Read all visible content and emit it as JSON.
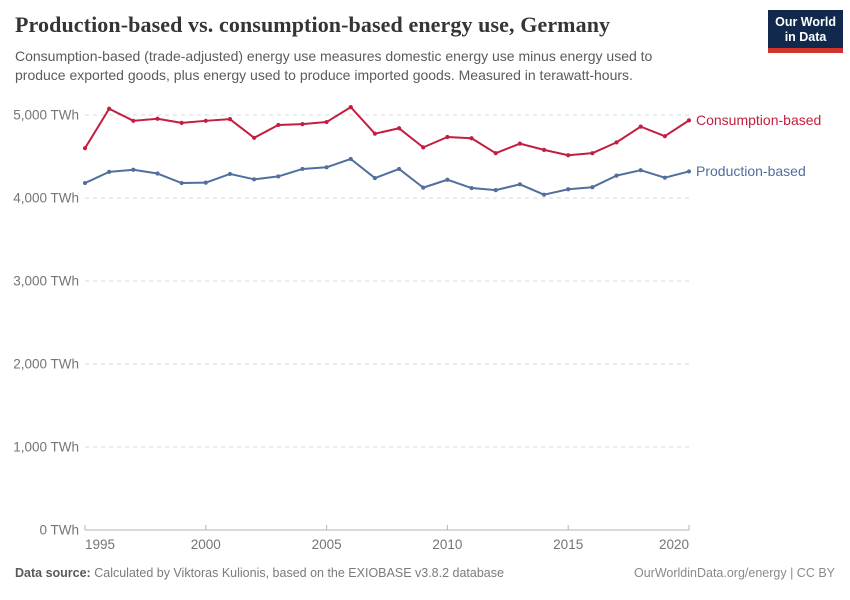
{
  "header": {
    "title": "Production-based vs. consumption-based energy use, Germany",
    "subtitle": "Consumption-based (trade-adjusted) energy use measures domestic energy use minus energy used to produce exported goods, plus energy used to produce imported goods. Measured in terawatt-hours."
  },
  "logo": {
    "line1": "Our World",
    "line2": "in Data",
    "bg_color": "#10294c",
    "accent_color": "#d0332a"
  },
  "chart_data": {
    "type": "line",
    "title": "Production-based vs. consumption-based energy use, Germany",
    "unit": "TWh",
    "xlabel": "",
    "ylabel": "",
    "grid": "horizontal-dashed",
    "legend_position": "right-of-line-ends",
    "xlim": [
      1995,
      2020
    ],
    "ylim": [
      0,
      5200
    ],
    "x": [
      1995,
      1996,
      1997,
      1998,
      1999,
      2000,
      2001,
      2002,
      2003,
      2004,
      2005,
      2006,
      2007,
      2008,
      2009,
      2010,
      2011,
      2012,
      2013,
      2014,
      2015,
      2016,
      2017,
      2018,
      2019,
      2020
    ],
    "series": [
      {
        "name": "Consumption-based",
        "color": "#c21e3f",
        "values": [
          4600,
          5075,
          4930,
          4955,
          4905,
          4930,
          4950,
          4725,
          4880,
          4890,
          4915,
          5095,
          4775,
          4840,
          4610,
          4735,
          4720,
          4540,
          4655,
          4580,
          4515,
          4540,
          4670,
          4860,
          4745,
          4935
        ]
      },
      {
        "name": "Production-based",
        "color": "#506e9e",
        "values": [
          4180,
          4315,
          4340,
          4295,
          4180,
          4185,
          4290,
          4225,
          4260,
          4350,
          4370,
          4470,
          4240,
          4350,
          4125,
          4220,
          4120,
          4095,
          4165,
          4040,
          4105,
          4130,
          4270,
          4335,
          4245,
          4320
        ]
      }
    ],
    "y_ticks": [
      {
        "value": 0,
        "label": "0 TWh"
      },
      {
        "value": 1000,
        "label": "1,000 TWh"
      },
      {
        "value": 2000,
        "label": "2,000 TWh"
      },
      {
        "value": 3000,
        "label": "3,000 TWh"
      },
      {
        "value": 4000,
        "label": "4,000 TWh"
      },
      {
        "value": 5000,
        "label": "5,000 TWh"
      }
    ],
    "x_ticks": [
      {
        "value": 1995,
        "label": "1995"
      },
      {
        "value": 2000,
        "label": "2000"
      },
      {
        "value": 2005,
        "label": "2005"
      },
      {
        "value": 2010,
        "label": "2010"
      },
      {
        "value": 2015,
        "label": "2015"
      },
      {
        "value": 2020,
        "label": "2020"
      }
    ]
  },
  "footer": {
    "source_label": "Data source:",
    "source_text": "Calculated by Viktoras Kulionis, based on the EXIOBASE v3.8.2 database",
    "attribution": "OurWorldinData.org/energy | CC BY"
  }
}
